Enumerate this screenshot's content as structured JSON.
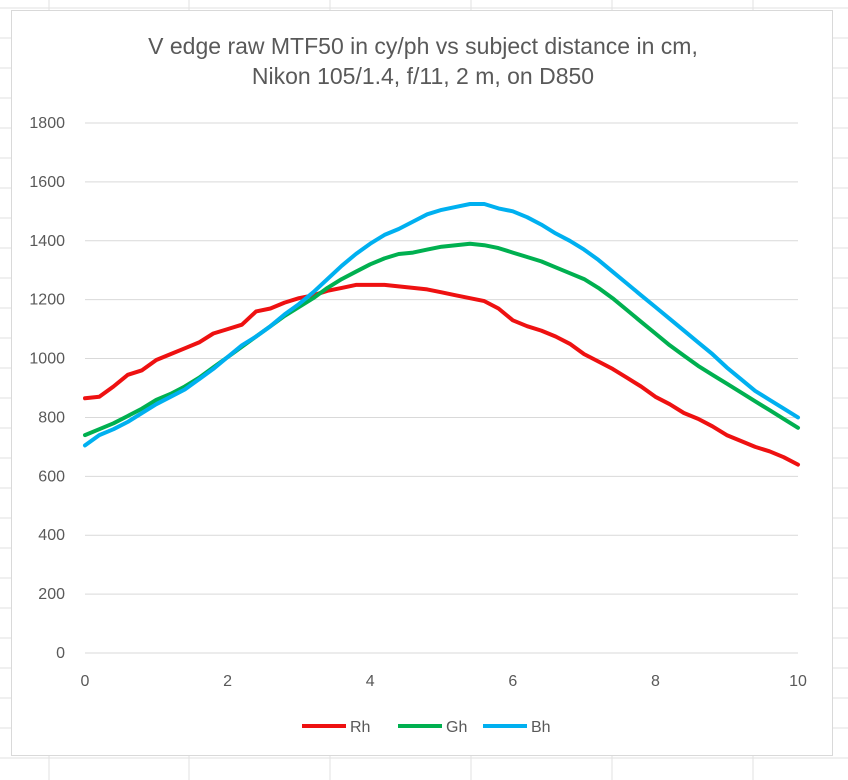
{
  "chart_data": {
    "type": "line",
    "title": [
      "V edge raw MTF50 in cy/ph vs subject distance in cm,",
      "Nikon 105/1.4, f/11, 2 m, on D850"
    ],
    "xlim": [
      0,
      10
    ],
    "ylim": [
      0,
      1800
    ],
    "x_ticks": [
      "0",
      "2",
      "4",
      "6",
      "8",
      "10"
    ],
    "y_ticks": [
      "0",
      "200",
      "400",
      "600",
      "800",
      "1000",
      "1200",
      "1400",
      "1600",
      "1800"
    ],
    "grid": "horizontal",
    "legend_position": "bottom",
    "series": [
      {
        "name": "Rh",
        "color": "#ee1111",
        "points": [
          [
            0,
            865
          ],
          [
            0.2,
            870
          ],
          [
            0.4,
            905
          ],
          [
            0.6,
            945
          ],
          [
            0.8,
            960
          ],
          [
            1.0,
            995
          ],
          [
            1.2,
            1015
          ],
          [
            1.4,
            1035
          ],
          [
            1.6,
            1055
          ],
          [
            1.8,
            1085
          ],
          [
            2.0,
            1100
          ],
          [
            2.2,
            1115
          ],
          [
            2.4,
            1160
          ],
          [
            2.6,
            1170
          ],
          [
            2.8,
            1190
          ],
          [
            3.0,
            1205
          ],
          [
            3.2,
            1215
          ],
          [
            3.4,
            1230
          ],
          [
            3.6,
            1240
          ],
          [
            3.8,
            1250
          ],
          [
            4.0,
            1250
          ],
          [
            4.2,
            1250
          ],
          [
            4.4,
            1245
          ],
          [
            4.6,
            1240
          ],
          [
            4.8,
            1235
          ],
          [
            5.0,
            1225
          ],
          [
            5.2,
            1215
          ],
          [
            5.4,
            1205
          ],
          [
            5.6,
            1195
          ],
          [
            5.8,
            1170
          ],
          [
            6.0,
            1130
          ],
          [
            6.2,
            1110
          ],
          [
            6.4,
            1095
          ],
          [
            6.6,
            1075
          ],
          [
            6.8,
            1050
          ],
          [
            7.0,
            1015
          ],
          [
            7.2,
            990
          ],
          [
            7.4,
            965
          ],
          [
            7.6,
            935
          ],
          [
            7.8,
            905
          ],
          [
            8.0,
            870
          ],
          [
            8.2,
            845
          ],
          [
            8.4,
            815
          ],
          [
            8.6,
            795
          ],
          [
            8.8,
            770
          ],
          [
            9.0,
            740
          ],
          [
            9.2,
            720
          ],
          [
            9.4,
            700
          ],
          [
            9.6,
            685
          ],
          [
            9.8,
            665
          ],
          [
            10.0,
            640
          ]
        ]
      },
      {
        "name": "Gh",
        "color": "#00b050",
        "points": [
          [
            0,
            740
          ],
          [
            0.2,
            760
          ],
          [
            0.4,
            780
          ],
          [
            0.6,
            805
          ],
          [
            0.8,
            830
          ],
          [
            1.0,
            860
          ],
          [
            1.2,
            880
          ],
          [
            1.4,
            905
          ],
          [
            1.6,
            935
          ],
          [
            1.8,
            970
          ],
          [
            2.0,
            1005
          ],
          [
            2.2,
            1040
          ],
          [
            2.4,
            1075
          ],
          [
            2.6,
            1110
          ],
          [
            2.8,
            1145
          ],
          [
            3.0,
            1175
          ],
          [
            3.2,
            1205
          ],
          [
            3.4,
            1240
          ],
          [
            3.6,
            1270
          ],
          [
            3.8,
            1295
          ],
          [
            4.0,
            1320
          ],
          [
            4.2,
            1340
          ],
          [
            4.4,
            1355
          ],
          [
            4.6,
            1360
          ],
          [
            4.8,
            1370
          ],
          [
            5.0,
            1380
          ],
          [
            5.2,
            1385
          ],
          [
            5.4,
            1390
          ],
          [
            5.6,
            1385
          ],
          [
            5.8,
            1375
          ],
          [
            6.0,
            1360
          ],
          [
            6.2,
            1345
          ],
          [
            6.4,
            1330
          ],
          [
            6.6,
            1310
          ],
          [
            6.8,
            1290
          ],
          [
            7.0,
            1270
          ],
          [
            7.2,
            1240
          ],
          [
            7.4,
            1205
          ],
          [
            7.6,
            1165
          ],
          [
            7.8,
            1125
          ],
          [
            8.0,
            1085
          ],
          [
            8.2,
            1045
          ],
          [
            8.4,
            1010
          ],
          [
            8.6,
            975
          ],
          [
            8.8,
            945
          ],
          [
            9.0,
            915
          ],
          [
            9.2,
            885
          ],
          [
            9.4,
            855
          ],
          [
            9.6,
            825
          ],
          [
            9.8,
            795
          ],
          [
            10.0,
            765
          ]
        ]
      },
      {
        "name": "Bh",
        "color": "#00b0f0",
        "points": [
          [
            0,
            705
          ],
          [
            0.2,
            740
          ],
          [
            0.4,
            760
          ],
          [
            0.6,
            785
          ],
          [
            0.8,
            815
          ],
          [
            1.0,
            845
          ],
          [
            1.2,
            870
          ],
          [
            1.4,
            895
          ],
          [
            1.6,
            930
          ],
          [
            1.8,
            965
          ],
          [
            2.0,
            1005
          ],
          [
            2.2,
            1045
          ],
          [
            2.4,
            1075
          ],
          [
            2.6,
            1110
          ],
          [
            2.8,
            1150
          ],
          [
            3.0,
            1185
          ],
          [
            3.2,
            1225
          ],
          [
            3.4,
            1270
          ],
          [
            3.6,
            1315
          ],
          [
            3.8,
            1355
          ],
          [
            4.0,
            1390
          ],
          [
            4.2,
            1420
          ],
          [
            4.4,
            1440
          ],
          [
            4.6,
            1465
          ],
          [
            4.8,
            1490
          ],
          [
            5.0,
            1505
          ],
          [
            5.2,
            1515
          ],
          [
            5.4,
            1525
          ],
          [
            5.6,
            1525
          ],
          [
            5.8,
            1510
          ],
          [
            6.0,
            1500
          ],
          [
            6.2,
            1480
          ],
          [
            6.4,
            1455
          ],
          [
            6.6,
            1425
          ],
          [
            6.8,
            1400
          ],
          [
            7.0,
            1370
          ],
          [
            7.2,
            1335
          ],
          [
            7.4,
            1295
          ],
          [
            7.6,
            1255
          ],
          [
            7.8,
            1215
          ],
          [
            8.0,
            1175
          ],
          [
            8.2,
            1135
          ],
          [
            8.4,
            1095
          ],
          [
            8.6,
            1055
          ],
          [
            8.8,
            1015
          ],
          [
            9.0,
            970
          ],
          [
            9.2,
            930
          ],
          [
            9.4,
            890
          ],
          [
            9.6,
            860
          ],
          [
            9.8,
            830
          ],
          [
            10.0,
            800
          ]
        ]
      }
    ]
  }
}
